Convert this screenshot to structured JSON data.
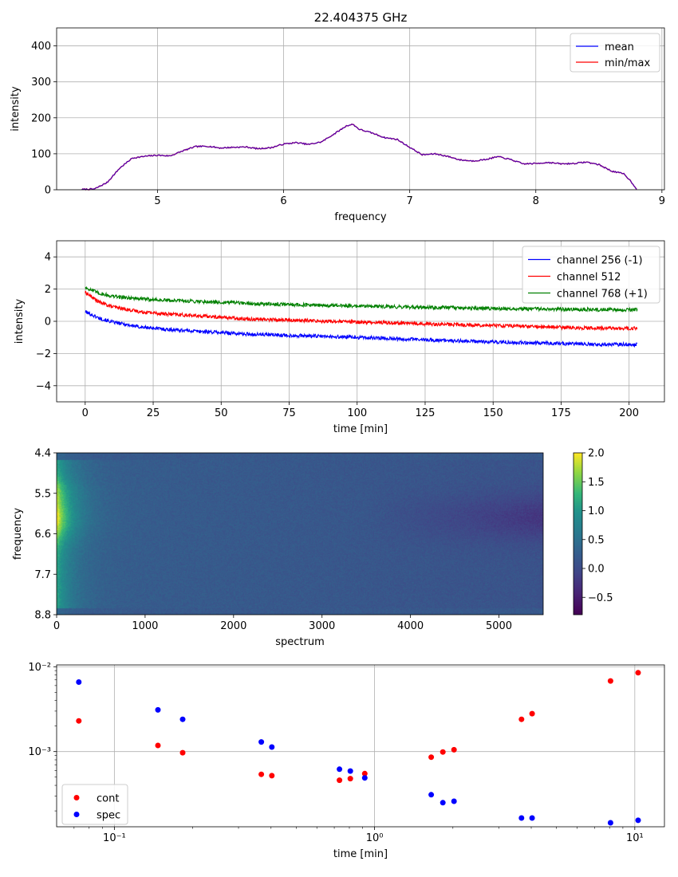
{
  "figure": {
    "title": "22.404375 GHz"
  },
  "chart_data": [
    {
      "type": "line",
      "title": "22.404375 GHz",
      "xlabel": "frequency",
      "ylabel": "intensity",
      "xlim": [
        4.2,
        9.02
      ],
      "ylim": [
        0,
        450
      ],
      "xticks": [
        5,
        6,
        7,
        8,
        9
      ],
      "yticks": [
        0,
        100,
        200,
        300,
        400
      ],
      "grid": true,
      "legend_position": "upper-right",
      "legend": [
        "mean",
        "min/max"
      ],
      "series": [
        {
          "name": "mean",
          "color": "#0000ff",
          "x": [
            4.4,
            4.5,
            4.6,
            4.7,
            4.8,
            4.9,
            5.0,
            5.1,
            5.2,
            5.3,
            5.4,
            5.5,
            5.6,
            5.7,
            5.8,
            5.9,
            6.0,
            6.1,
            6.2,
            6.3,
            6.4,
            6.5,
            6.55,
            6.6,
            6.7,
            6.8,
            6.9,
            7.0,
            7.1,
            7.2,
            7.3,
            7.4,
            7.5,
            7.6,
            7.7,
            7.8,
            7.9,
            8.0,
            8.1,
            8.2,
            8.3,
            8.4,
            8.5,
            8.6,
            8.7,
            8.75,
            8.8
          ],
          "y": [
            1,
            2,
            20,
            60,
            88,
            93,
            96,
            94,
            108,
            120,
            121,
            116,
            118,
            119,
            114,
            117,
            127,
            131,
            126,
            133,
            155,
            178,
            182,
            168,
            158,
            145,
            140,
            118,
            97,
            100,
            93,
            83,
            80,
            84,
            92,
            84,
            72,
            73,
            76,
            72,
            73,
            77,
            70,
            52,
            44,
            25,
            2
          ]
        },
        {
          "name": "min/max",
          "color": "#ff0000",
          "x": [
            4.4,
            4.5,
            4.6,
            4.7,
            4.8,
            4.9,
            5.0,
            5.1,
            5.2,
            5.3,
            5.4,
            5.5,
            5.6,
            5.7,
            5.8,
            5.9,
            6.0,
            6.1,
            6.2,
            6.3,
            6.4,
            6.5,
            6.55,
            6.6,
            6.7,
            6.8,
            6.9,
            7.0,
            7.1,
            7.2,
            7.3,
            7.4,
            7.5,
            7.6,
            7.7,
            7.8,
            7.9,
            8.0,
            8.1,
            8.2,
            8.3,
            8.4,
            8.5,
            8.6,
            8.7,
            8.75,
            8.8
          ],
          "y": [
            1,
            2,
            20,
            60,
            88,
            93,
            96,
            94,
            108,
            120,
            121,
            116,
            118,
            119,
            114,
            117,
            127,
            131,
            126,
            133,
            155,
            178,
            182,
            168,
            158,
            145,
            140,
            118,
            97,
            100,
            93,
            83,
            80,
            84,
            92,
            84,
            72,
            73,
            76,
            72,
            73,
            77,
            70,
            52,
            44,
            25,
            2
          ]
        }
      ]
    },
    {
      "type": "line",
      "xlabel": "time [min]",
      "ylabel": "intensity",
      "xlim": [
        -10.5,
        213
      ],
      "ylim": [
        -5,
        5
      ],
      "xticks": [
        0,
        25,
        50,
        75,
        100,
        125,
        150,
        175,
        200
      ],
      "yticks": [
        -4,
        -2,
        0,
        2,
        4
      ],
      "grid": true,
      "legend_position": "upper-right",
      "legend": [
        "channel 256 (-1)",
        "channel 512",
        "channel 768 (+1)"
      ],
      "series": [
        {
          "name": "channel 256 (-1)",
          "color": "#0000ff",
          "x": [
            0,
            5,
            10,
            20,
            30,
            40,
            50,
            60,
            70,
            80,
            90,
            100,
            110,
            120,
            130,
            140,
            150,
            160,
            170,
            180,
            190,
            203
          ],
          "y": [
            0.6,
            0.2,
            -0.05,
            -0.35,
            -0.5,
            -0.6,
            -0.7,
            -0.8,
            -0.85,
            -0.9,
            -0.95,
            -1.0,
            -1.05,
            -1.12,
            -1.18,
            -1.23,
            -1.28,
            -1.32,
            -1.36,
            -1.4,
            -1.42,
            -1.45
          ]
        },
        {
          "name": "channel 512",
          "color": "#ff0000",
          "x": [
            0,
            5,
            10,
            20,
            30,
            40,
            50,
            60,
            70,
            80,
            90,
            100,
            110,
            120,
            130,
            140,
            150,
            160,
            170,
            180,
            190,
            203
          ],
          "y": [
            1.8,
            1.2,
            0.9,
            0.6,
            0.45,
            0.35,
            0.25,
            0.15,
            0.1,
            0.05,
            0.0,
            -0.05,
            -0.08,
            -0.12,
            -0.18,
            -0.22,
            -0.25,
            -0.3,
            -0.35,
            -0.4,
            -0.42,
            -0.45
          ]
        },
        {
          "name": "channel 768 (+1)",
          "color": "#008000",
          "x": [
            0,
            5,
            10,
            20,
            30,
            40,
            50,
            60,
            70,
            80,
            90,
            100,
            110,
            120,
            130,
            140,
            150,
            160,
            170,
            180,
            190,
            203
          ],
          "y": [
            2.1,
            1.75,
            1.55,
            1.4,
            1.3,
            1.25,
            1.18,
            1.12,
            1.06,
            1.02,
            0.98,
            0.95,
            0.92,
            0.88,
            0.85,
            0.82,
            0.8,
            0.78,
            0.76,
            0.74,
            0.73,
            0.72
          ]
        }
      ]
    },
    {
      "type": "heatmap",
      "xlabel": "spectrum",
      "ylabel": "frequency",
      "xlim": [
        0,
        5500
      ],
      "xticks": [
        0,
        1000,
        2000,
        3000,
        4000,
        5000
      ],
      "yticks": [
        "4.4",
        "5.5",
        "6.6",
        "7.7",
        "8.8"
      ],
      "colormap": "viridis",
      "colorbar": {
        "min": -0.8,
        "max": 2.0,
        "ticks": [
          "2.0",
          "1.5",
          "1.0",
          "0.5",
          "0.0",
          "−0.5"
        ],
        "tick_values": [
          2.0,
          1.5,
          1.0,
          0.5,
          0.0,
          -0.5
        ]
      }
    },
    {
      "type": "scatter",
      "xlabel": "time [min]",
      "xscale": "log",
      "yscale": "log",
      "xlim": [
        0.06,
        13
      ],
      "ylim": [
        0.00013,
        0.0105
      ],
      "xticks": [
        0.1,
        1,
        10
      ],
      "xtick_labels": [
        "10⁻¹",
        "10⁰",
        "10¹"
      ],
      "yticks": [
        0.001,
        0.01
      ],
      "ytick_labels": [
        "10⁻³",
        "10⁻²"
      ],
      "grid": true,
      "legend_position": "lower-left",
      "legend": [
        "cont",
        "spec"
      ],
      "series": [
        {
          "name": "cont",
          "color": "#ff0000",
          "x": [
            0.073,
            0.147,
            0.183,
            0.367,
            0.403,
            0.733,
            0.807,
            0.917,
            1.65,
            1.83,
            2.02,
            3.67,
            4.03,
            8.07,
            10.3
          ],
          "y": [
            0.0023,
            0.00118,
            0.00097,
            0.00054,
            0.00052,
            0.00046,
            0.00048,
            0.00055,
            0.00086,
            0.00099,
            0.00105,
            0.0024,
            0.0028,
            0.0068,
            0.0085
          ]
        },
        {
          "name": "spec",
          "color": "#0000ff",
          "x": [
            0.073,
            0.147,
            0.183,
            0.367,
            0.403,
            0.733,
            0.807,
            0.917,
            1.65,
            1.83,
            2.02,
            3.67,
            4.03,
            8.07,
            10.3
          ],
          "y": [
            0.0066,
            0.0031,
            0.0024,
            0.0013,
            0.00113,
            0.00062,
            0.00059,
            0.00049,
            0.00031,
            0.00025,
            0.00026,
            0.000165,
            0.000165,
            0.000145,
            0.000155
          ]
        }
      ]
    }
  ]
}
